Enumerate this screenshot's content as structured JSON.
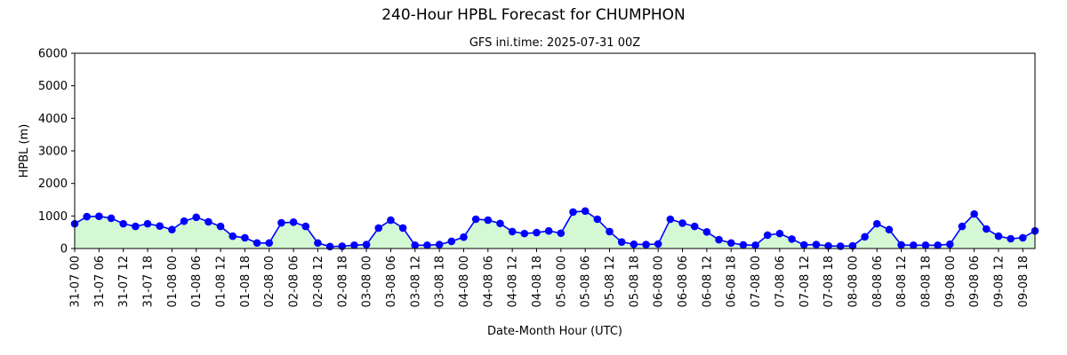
{
  "chart_data": {
    "type": "line",
    "title": "240-Hour HPBL Forecast for CHUMPHON",
    "subtitle": "GFS ini.time: 2025-07-31 00Z",
    "xlabel": "Date-Month Hour (UTC)",
    "ylabel": "HPBL (m)",
    "ylim": [
      0,
      6000
    ],
    "yticks": [
      0,
      1000,
      2000,
      3000,
      4000,
      5000,
      6000
    ],
    "xticks": [
      "31-07 00",
      "31-07 06",
      "31-07 12",
      "31-07 18",
      "01-08 00",
      "01-08 06",
      "01-08 12",
      "01-08 18",
      "02-08 00",
      "02-08 06",
      "02-08 12",
      "02-08 18",
      "03-08 00",
      "03-08 06",
      "03-08 12",
      "03-08 18",
      "04-08 00",
      "04-08 06",
      "04-08 12",
      "04-08 18",
      "05-08 00",
      "05-08 06",
      "05-08 12",
      "05-08 18",
      "06-08 00",
      "06-08 06",
      "06-08 12",
      "06-08 18",
      "07-08 00",
      "07-08 06",
      "07-08 12",
      "07-08 18",
      "08-08 00",
      "08-08 06",
      "08-08 12",
      "08-08 18",
      "09-08 00",
      "09-08 06",
      "09-08 12",
      "09-08 18"
    ],
    "x_step_hours": 3,
    "grid": false,
    "line_color": "#0000ff",
    "fill_color": "#d4f8d4",
    "series": [
      {
        "values": [
          760,
          980,
          990,
          930,
          760,
          680,
          760,
          690,
          580,
          840,
          960,
          820,
          680,
          380,
          330,
          170,
          170,
          790,
          810,
          680,
          170,
          60,
          70,
          100,
          120,
          630,
          870,
          630,
          100,
          100,
          120,
          220,
          350,
          900,
          870,
          770,
          520,
          460,
          490,
          540,
          470,
          1120,
          1150,
          900,
          520,
          200,
          130,
          120,
          140,
          900,
          780,
          680,
          510,
          270,
          170,
          110,
          100,
          410,
          460,
          290,
          110,
          120,
          80,
          70,
          80,
          360,
          760,
          580,
          110,
          100,
          100,
          100,
          130,
          680,
          1060,
          600,
          380,
          300,
          330,
          540
        ]
      }
    ]
  }
}
